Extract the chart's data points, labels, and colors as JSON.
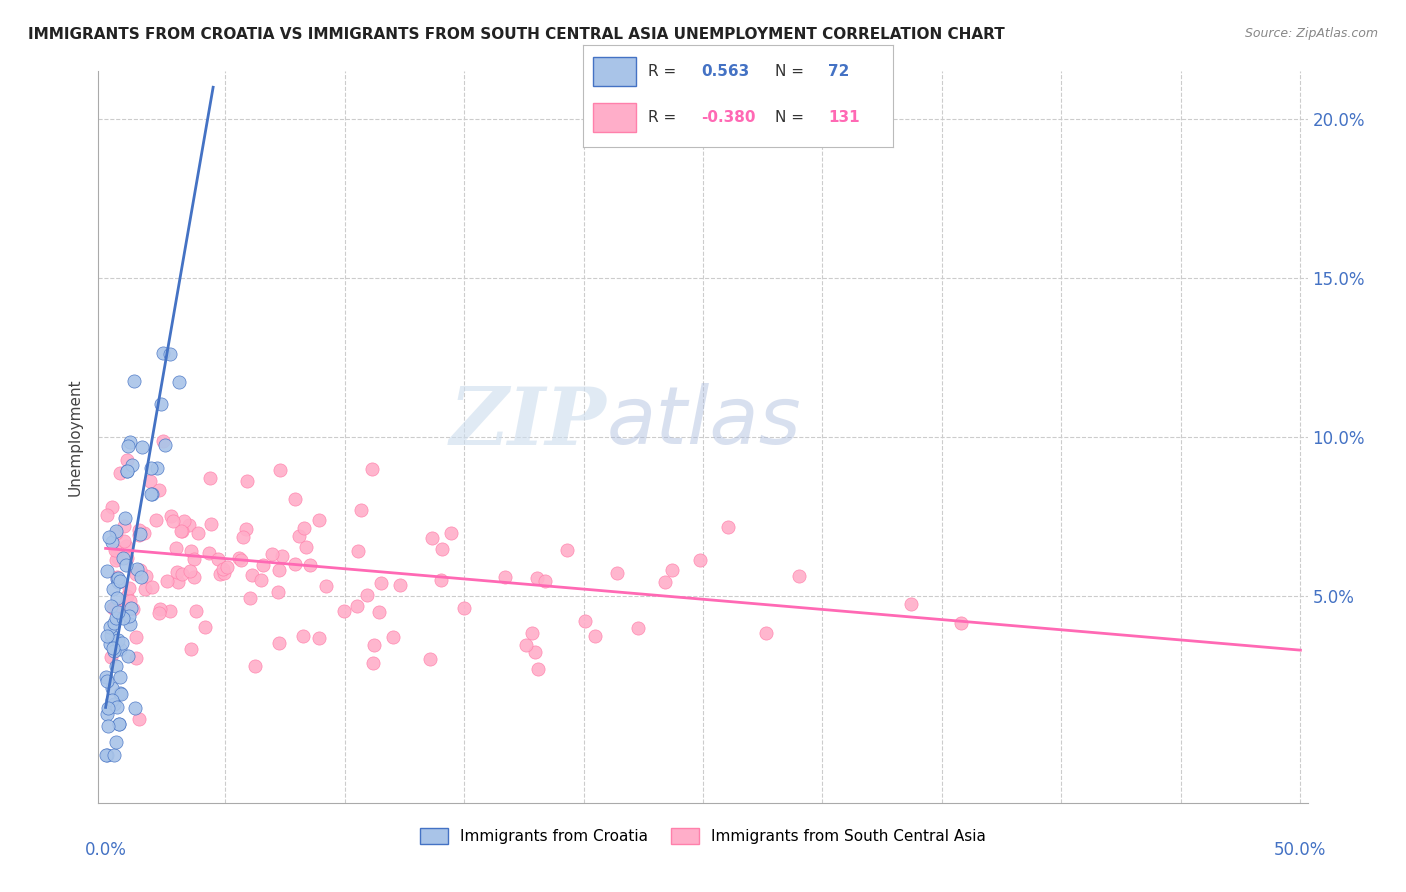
{
  "title": "IMMIGRANTS FROM CROATIA VS IMMIGRANTS FROM SOUTH CENTRAL ASIA UNEMPLOYMENT CORRELATION CHART",
  "source": "Source: ZipAtlas.com",
  "ylabel": "Unemployment",
  "color_blue": "#4472C4",
  "color_blue_light": "#A9C4E8",
  "color_pink_fill": "#FFAEC9",
  "color_pink_edge": "#FF80AB",
  "color_pink_line": "#FF69B4",
  "watermark_zip": "ZIP",
  "watermark_atlas": "atlas",
  "xlim": [
    0.0,
    0.5
  ],
  "ylim": [
    -0.015,
    0.215
  ],
  "yticks": [
    0.05,
    0.1,
    0.15,
    0.2
  ],
  "ytick_labels": [
    "5.0%",
    "10.0%",
    "15.0%",
    "20.0%"
  ],
  "xtick_left_label": "0.0%",
  "xtick_right_label": "50.0%",
  "legend_r1_label": "R = ",
  "legend_r1_val": " 0.563",
  "legend_n1_label": "N = ",
  "legend_n1_val": " 72",
  "legend_r2_label": "R = ",
  "legend_r2_val": "-0.380",
  "legend_n2_label": "N = ",
  "legend_n2_val": " 131",
  "blue_line": {
    "x0": 0.0,
    "y0": 0.015,
    "x1": 0.045,
    "y1": 0.21
  },
  "pink_line": {
    "x0": 0.0,
    "y0": 0.065,
    "x1": 0.5,
    "y1": 0.033
  }
}
